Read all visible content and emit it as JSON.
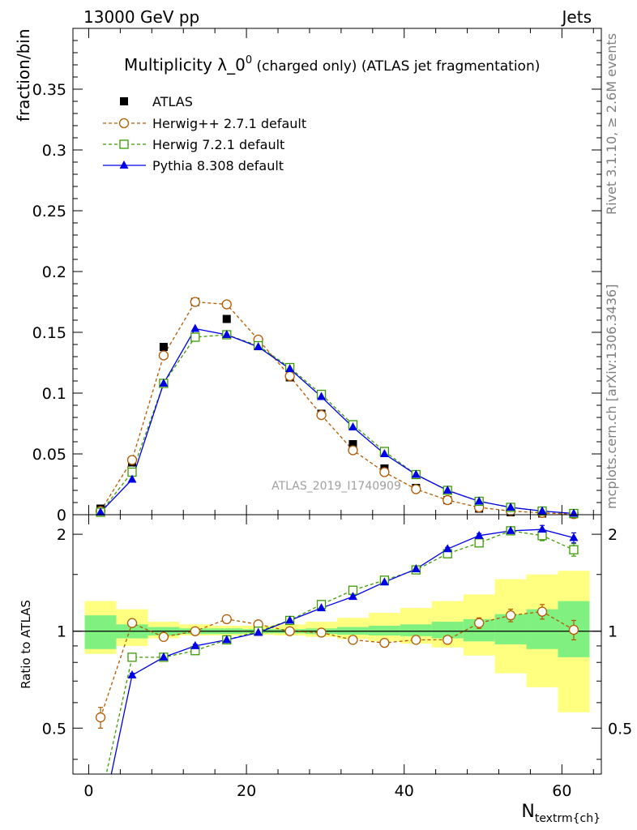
{
  "header": {
    "left": "13000 GeV pp",
    "right": "Jets"
  },
  "side_labels": {
    "rivet": "Rivet 3.1.10, ≥ 2.6M events",
    "mcplots": "mcplots.cern.ch [arXiv:1306.3436]"
  },
  "watermark": "ATLAS_2019_I1740909",
  "chart_data": [
    {
      "type": "scatter",
      "title_main": "Multiplicity λ_0",
      "title_sup": "0",
      "title_suffix": " (charged only) (ATLAS jet fragmentation)",
      "ylabel": "fraction/bin",
      "xlabel_main": "N",
      "xlabel_sub": "textrm{ch}",
      "xlim": [
        -2,
        65
      ],
      "ylim": [
        0,
        0.4
      ],
      "yticks": [
        0,
        0.05,
        0.1,
        0.15,
        0.2,
        0.25,
        0.3,
        0.35
      ],
      "ytick_labels": [
        "0",
        "0.05",
        "0.1",
        "0.15",
        "0.2",
        "0.25",
        "0.3",
        "0.35"
      ],
      "legend_position": "top-left",
      "x": [
        1.5,
        5.5,
        9.5,
        13.5,
        17.5,
        21.5,
        25.5,
        29.5,
        33.5,
        37.5,
        41.5,
        45.5,
        49.5,
        53.5,
        57.5,
        61.5
      ],
      "series": [
        {
          "name": "ATLAS",
          "marker": "square-filled",
          "color": "#000000",
          "values": [
            0.005,
            0.043,
            0.138,
            0.175,
            0.161,
            0.139,
            0.113,
            0.083,
            0.058,
            0.038,
            0.022,
            0.012,
            0.005,
            0.002,
            0.001,
            0.0005
          ]
        },
        {
          "name": "Herwig++ 2.7.1 default",
          "marker": "circle-open",
          "line": "dashed",
          "color": "#b35900",
          "values": [
            0.003,
            0.045,
            0.131,
            0.175,
            0.173,
            0.144,
            0.114,
            0.082,
            0.053,
            0.035,
            0.021,
            0.012,
            0.006,
            0.003,
            0.0015,
            0.0005
          ]
        },
        {
          "name": "Herwig 7.2.1 default",
          "marker": "square-open",
          "line": "dashed",
          "color": "#3a9b00",
          "values": [
            0.002,
            0.035,
            0.108,
            0.146,
            0.148,
            0.139,
            0.121,
            0.099,
            0.074,
            0.052,
            0.033,
            0.02,
            0.011,
            0.006,
            0.003,
            0.001
          ]
        },
        {
          "name": "Pythia 8.308 default",
          "marker": "triangle-filled",
          "line": "solid",
          "color": "#0000e6",
          "values": [
            0.002,
            0.029,
            0.108,
            0.153,
            0.148,
            0.138,
            0.12,
            0.097,
            0.072,
            0.05,
            0.033,
            0.02,
            0.011,
            0.006,
            0.003,
            0.001
          ]
        }
      ]
    },
    {
      "type": "line",
      "ylabel": "Ratio to ATLAS",
      "xlim": [
        -2,
        65
      ],
      "ylim": [
        0.36,
        2.3
      ],
      "xticks": [
        0,
        20,
        40,
        60
      ],
      "xtick_labels": [
        "0",
        "20",
        "40",
        "60"
      ],
      "yticks": [
        0.5,
        1,
        2
      ],
      "ytick_labels": [
        "0.5",
        "1",
        "2"
      ],
      "reference_line": 1,
      "bins": [
        [
          -0.5,
          3.5
        ],
        [
          3.5,
          7.5
        ],
        [
          7.5,
          11.5
        ],
        [
          11.5,
          15.5
        ],
        [
          15.5,
          19.5
        ],
        [
          19.5,
          23.5
        ],
        [
          23.5,
          27.5
        ],
        [
          27.5,
          31.5
        ],
        [
          31.5,
          35.5
        ],
        [
          35.5,
          39.5
        ],
        [
          39.5,
          43.5
        ],
        [
          43.5,
          47.5
        ],
        [
          47.5,
          51.5
        ],
        [
          51.5,
          55.5
        ],
        [
          55.5,
          59.5
        ],
        [
          59.5,
          63.5
        ]
      ],
      "bands": {
        "stat": {
          "color": "#80f080",
          "low": [
            0.88,
            0.95,
            0.97,
            0.98,
            0.98,
            0.985,
            0.985,
            0.98,
            0.975,
            0.97,
            0.965,
            0.95,
            0.93,
            0.91,
            0.88,
            0.83
          ],
          "high": [
            1.12,
            1.05,
            1.03,
            1.02,
            1.02,
            1.015,
            1.015,
            1.02,
            1.03,
            1.04,
            1.05,
            1.07,
            1.09,
            1.13,
            1.17,
            1.24
          ]
        },
        "total": {
          "color": "#ffff80",
          "low": [
            0.85,
            0.9,
            0.95,
            0.97,
            0.97,
            0.975,
            0.97,
            0.96,
            0.945,
            0.93,
            0.915,
            0.89,
            0.84,
            0.74,
            0.67,
            0.56
          ],
          "high": [
            1.24,
            1.17,
            1.07,
            1.05,
            1.04,
            1.04,
            1.05,
            1.07,
            1.1,
            1.14,
            1.18,
            1.24,
            1.3,
            1.45,
            1.5,
            1.54
          ]
        }
      },
      "x": [
        1.5,
        5.5,
        9.5,
        13.5,
        17.5,
        21.5,
        25.5,
        29.5,
        33.5,
        37.5,
        41.5,
        45.5,
        49.5,
        53.5,
        57.5,
        61.5
      ],
      "series": [
        {
          "name": "Herwig++ 2.7.1 default",
          "color": "#b35900",
          "values": [
            0.54,
            1.06,
            0.96,
            1.0,
            1.09,
            1.05,
            1.0,
            0.99,
            0.94,
            0.92,
            0.94,
            0.94,
            1.06,
            1.12,
            1.15,
            1.01
          ],
          "errors": [
            0.04,
            0.01,
            0.01,
            0.01,
            0.01,
            0.01,
            0.01,
            0.01,
            0.01,
            0.01,
            0.01,
            0.01,
            0.04,
            0.05,
            0.06,
            0.07
          ]
        },
        {
          "name": "Herwig 7.2.1 default",
          "color": "#3a9b00",
          "values": [
            0.3,
            0.83,
            0.83,
            0.87,
            0.94,
            1.0,
            1.08,
            1.21,
            1.34,
            1.44,
            1.55,
            1.74,
            1.88,
            2.05,
            1.98,
            1.79
          ],
          "errors": [
            0.0,
            0.01,
            0.01,
            0.01,
            0.01,
            0.01,
            0.01,
            0.01,
            0.01,
            0.01,
            0.02,
            0.02,
            0.03,
            0.05,
            0.07,
            0.08
          ]
        },
        {
          "name": "Pythia 8.308 default",
          "color": "#0000e6",
          "values": [
            0.25,
            0.73,
            0.83,
            0.9,
            0.94,
            0.99,
            1.08,
            1.18,
            1.28,
            1.42,
            1.56,
            1.8,
            1.98,
            2.05,
            2.07,
            1.95
          ],
          "errors": [
            0.0,
            0.01,
            0.01,
            0.01,
            0.01,
            0.01,
            0.01,
            0.01,
            0.01,
            0.01,
            0.02,
            0.02,
            0.03,
            0.04,
            0.06,
            0.07
          ]
        }
      ]
    }
  ]
}
